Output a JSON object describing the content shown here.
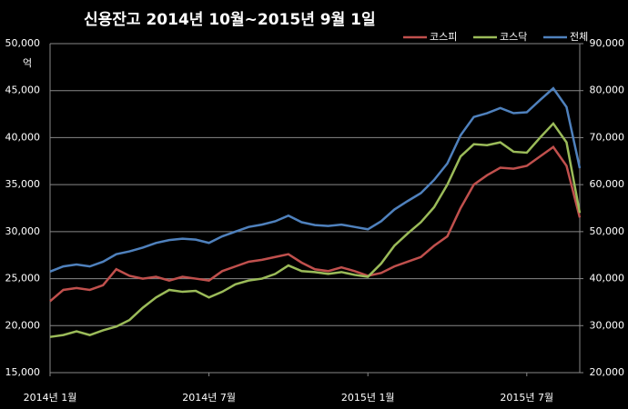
{
  "chart_data": {
    "type": "line",
    "title": "신용잔고 2014년 10월~2015년 9월 1일",
    "y_unit": "억",
    "categories": [
      "2014년 1월",
      null,
      null,
      null,
      null,
      null,
      null,
      null,
      null,
      null,
      null,
      null,
      "2014년 7월",
      null,
      null,
      null,
      null,
      null,
      null,
      null,
      null,
      null,
      null,
      null,
      "2015년 1월",
      null,
      null,
      null,
      null,
      null,
      null,
      null,
      null,
      null,
      null,
      null,
      "2015년 7월",
      null,
      null,
      null,
      null
    ],
    "series": [
      {
        "name": "코스피",
        "color": "#c0504d",
        "values": [
          22600,
          23800,
          24000,
          23800,
          24300,
          26000,
          25300,
          25000,
          25200,
          24800,
          25200,
          25000,
          24800,
          25800,
          26300,
          26800,
          27000,
          27300,
          27600,
          26700,
          26000,
          25800,
          26200,
          25800,
          25300,
          25600,
          26300,
          26800,
          27300,
          28500,
          29500,
          32500,
          35000,
          36000,
          36800,
          36700,
          37000,
          38000,
          39000,
          37000,
          31500
        ]
      },
      {
        "name": "코스닥",
        "color": "#9bbb59",
        "values": [
          18800,
          19000,
          19400,
          19000,
          19500,
          19900,
          20600,
          21900,
          23000,
          23800,
          23600,
          23700,
          23000,
          23600,
          24400,
          24800,
          25000,
          25500,
          26400,
          25800,
          25700,
          25500,
          25700,
          25400,
          25200,
          26600,
          28500,
          29800,
          31000,
          32600,
          35000,
          38000,
          39300,
          39200,
          39500,
          38500,
          38400,
          40000,
          41500,
          39500,
          32000
        ]
      },
      {
        "name": "전체",
        "color": "#4f81bd",
        "axis": "y2",
        "values": [
          41500,
          42600,
          43000,
          42600,
          43600,
          45200,
          45800,
          46600,
          47600,
          48200,
          48500,
          48300,
          47600,
          49000,
          50000,
          51000,
          51500,
          52200,
          53400,
          52000,
          51400,
          51200,
          51500,
          51000,
          50500,
          52200,
          54700,
          56500,
          58200,
          61000,
          64500,
          70500,
          74400,
          75200,
          76300,
          75200,
          75400,
          78000,
          80500,
          76500,
          63500
        ]
      }
    ],
    "ylim": [
      15000,
      50000
    ],
    "yticks": [
      {
        "value": 15000,
        "label": "15,000"
      },
      {
        "value": 20000,
        "label": "20,000"
      },
      {
        "value": 25000,
        "label": "25,000"
      },
      {
        "value": 30000,
        "label": "30,000"
      },
      {
        "value": 35000,
        "label": "35,000"
      },
      {
        "value": 40000,
        "label": "40,000"
      },
      {
        "value": 45000,
        "label": "45,000"
      },
      {
        "value": 50000,
        "label": "50,000"
      }
    ],
    "y2lim": [
      20000,
      90000
    ],
    "y2ticks": [
      {
        "value": 20000,
        "label": "20,000"
      },
      {
        "value": 30000,
        "label": "30,000"
      },
      {
        "value": 40000,
        "label": "40,000"
      },
      {
        "value": 50000,
        "label": "50,000"
      },
      {
        "value": 60000,
        "label": "60,000"
      },
      {
        "value": 70000,
        "label": "70,000"
      },
      {
        "value": 80000,
        "label": "80,000"
      },
      {
        "value": 90000,
        "label": "90,000"
      }
    ],
    "grid": true
  }
}
